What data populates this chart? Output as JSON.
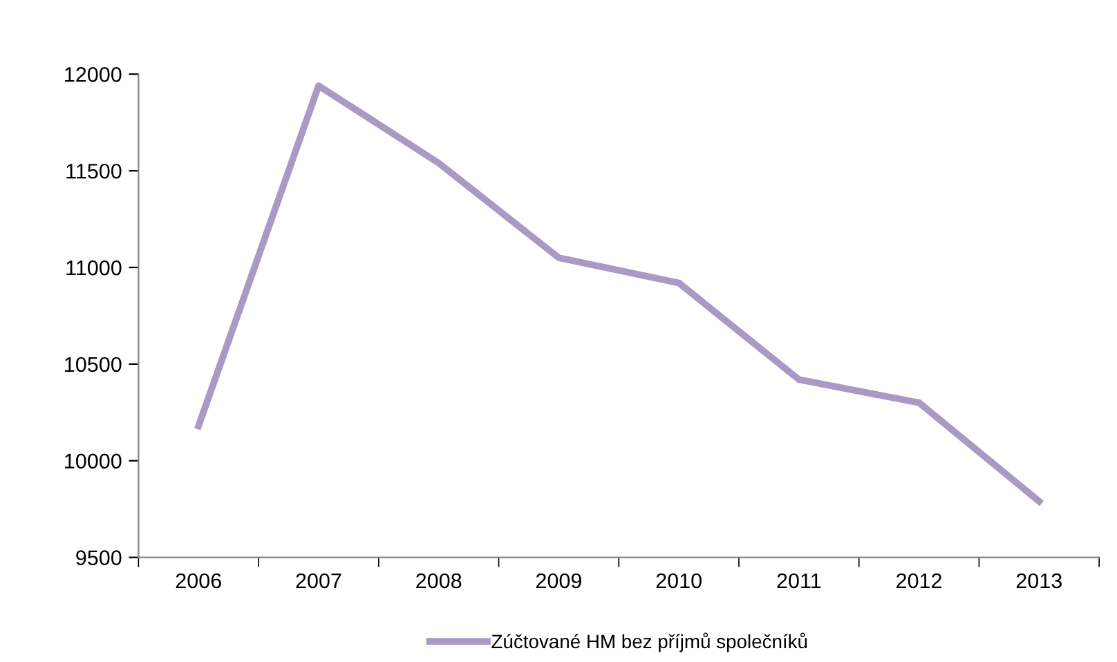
{
  "chart_data": {
    "type": "line",
    "categories": [
      "2006",
      "2007",
      "2008",
      "2009",
      "2010",
      "2011",
      "2012",
      "2013"
    ],
    "series": [
      {
        "name": "Zúčtované HM bez příjmů společníků",
        "color": "#a899c5",
        "values": [
          10180,
          11940,
          11540,
          11050,
          10920,
          10420,
          10300,
          9790
        ]
      }
    ],
    "ylim": [
      9500,
      12000
    ],
    "yticks": [
      9500,
      10000,
      10500,
      11000,
      11500,
      12000
    ],
    "grid": false,
    "legend": "bottom",
    "marker": "none",
    "line_style": "solid"
  }
}
